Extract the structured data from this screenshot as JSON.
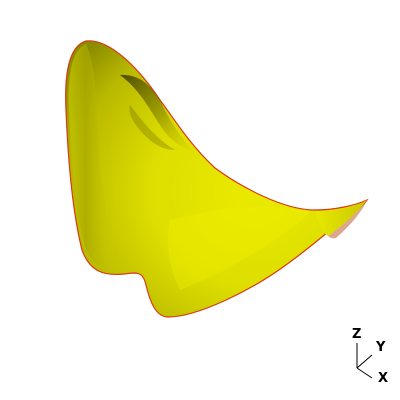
{
  "scene": {
    "surface_color": "#e6e600",
    "edge_color": "#d83a1a",
    "background_color": "#ffffff"
  },
  "axes_triad": {
    "z_label": "Z",
    "y_label": "Y",
    "x_label": "X",
    "line_color": "#000000"
  }
}
